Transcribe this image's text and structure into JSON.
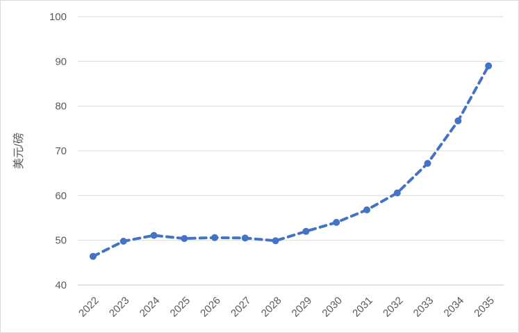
{
  "chart_data": {
    "type": "line",
    "title": "",
    "xlabel": "",
    "ylabel": "美元/磅",
    "x": [
      2022,
      2023,
      2024,
      2025,
      2026,
      2027,
      2028,
      2029,
      2030,
      2031,
      2032,
      2033,
      2034,
      2035
    ],
    "values": [
      46.4,
      49.8,
      51.1,
      50.4,
      50.6,
      50.5,
      49.9,
      52.0,
      54.0,
      56.8,
      60.6,
      67.2,
      76.7,
      89.0
    ],
    "ylim": [
      40,
      100
    ],
    "yticks": [
      40,
      50,
      60,
      70,
      80,
      90,
      100
    ],
    "grid": true,
    "legend": false,
    "line_style": "dashed",
    "marker": "circle",
    "x_tick_rotation_deg": 45,
    "colors": {
      "series": "#4472c4",
      "gridline": "#d9d9d9",
      "axis_line": "#c6c6c6",
      "tick_label": "#595959",
      "axis_title": "#595959",
      "background": "#ffffff",
      "border": "#d9d9d9"
    }
  }
}
